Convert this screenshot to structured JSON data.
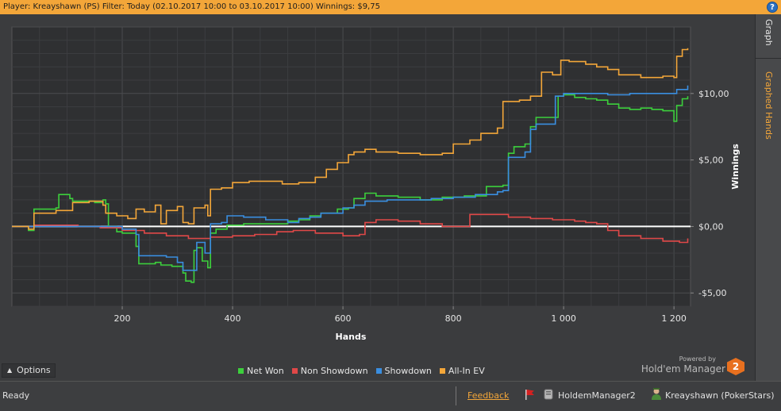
{
  "titlebar": {
    "text": "Player: Kreayshawn (PS) Filter: Today (02.10.2017 10:00 to 03.10.2017 10:00) Winnings: $9,75",
    "help_label": "?"
  },
  "side_tabs": {
    "graph": "Graph",
    "graphed_hands": "Graphed Hands"
  },
  "chart_data": {
    "type": "line",
    "xlabel": "Hands",
    "ylabel": "Winnings",
    "xlim": [
      0,
      1230
    ],
    "ylim": [
      -6,
      15
    ],
    "x_ticks": [
      200,
      400,
      600,
      800,
      1000,
      1200
    ],
    "x_tick_labels": [
      "200",
      "400",
      "600",
      "800",
      "1 000",
      "1 200"
    ],
    "y_ticks": [
      -5,
      0,
      5,
      10
    ],
    "y_tick_labels": [
      "-$5,00",
      "$0,00",
      "$5,00",
      "$10,00"
    ],
    "grid": true,
    "legend_position": "bottom-center",
    "series": [
      {
        "name": "Net Won",
        "color": "#3ccf3c",
        "points": [
          [
            0,
            0
          ],
          [
            30,
            -0.3
          ],
          [
            40,
            1.3
          ],
          [
            80,
            1.4
          ],
          [
            85,
            2.4
          ],
          [
            105,
            2.1
          ],
          [
            110,
            1.9
          ],
          [
            150,
            1.8
          ],
          [
            165,
            2.0
          ],
          [
            170,
            1.7
          ],
          [
            175,
            0
          ],
          [
            190,
            -0.4
          ],
          [
            200,
            -0.5
          ],
          [
            225,
            -1.5
          ],
          [
            230,
            -2.8
          ],
          [
            260,
            -2.7
          ],
          [
            270,
            -2.9
          ],
          [
            290,
            -3.0
          ],
          [
            310,
            -3.5
          ],
          [
            315,
            -4.1
          ],
          [
            325,
            -4.2
          ],
          [
            330,
            -1.8
          ],
          [
            335,
            -1.6
          ],
          [
            345,
            -2.6
          ],
          [
            355,
            -3.1
          ],
          [
            360,
            -0.5
          ],
          [
            370,
            -0.2
          ],
          [
            390,
            0.1
          ],
          [
            420,
            0.2
          ],
          [
            460,
            0.2
          ],
          [
            500,
            0.4
          ],
          [
            520,
            0.5
          ],
          [
            540,
            0.8
          ],
          [
            560,
            1.0
          ],
          [
            590,
            1.3
          ],
          [
            610,
            1.4
          ],
          [
            620,
            2.1
          ],
          [
            640,
            2.5
          ],
          [
            660,
            2.3
          ],
          [
            700,
            2.2
          ],
          [
            740,
            2.0
          ],
          [
            780,
            2.2
          ],
          [
            820,
            2.3
          ],
          [
            860,
            3.0
          ],
          [
            890,
            3.1
          ],
          [
            900,
            5.5
          ],
          [
            910,
            6.0
          ],
          [
            930,
            6.2
          ],
          [
            940,
            7.5
          ],
          [
            950,
            8.2
          ],
          [
            970,
            8.2
          ],
          [
            990,
            9.8
          ],
          [
            1000,
            9.9
          ],
          [
            1020,
            9.7
          ],
          [
            1040,
            9.6
          ],
          [
            1060,
            9.5
          ],
          [
            1080,
            9.2
          ],
          [
            1100,
            8.9
          ],
          [
            1120,
            8.8
          ],
          [
            1140,
            8.9
          ],
          [
            1160,
            8.8
          ],
          [
            1180,
            8.7
          ],
          [
            1200,
            7.9
          ],
          [
            1205,
            9.1
          ],
          [
            1215,
            9.6
          ],
          [
            1225,
            9.8
          ]
        ]
      },
      {
        "name": "Non Showdown",
        "color": "#e04848",
        "points": [
          [
            0,
            0
          ],
          [
            40,
            0.1
          ],
          [
            80,
            0.1
          ],
          [
            120,
            0
          ],
          [
            160,
            -0.1
          ],
          [
            200,
            -0.3
          ],
          [
            240,
            -0.5
          ],
          [
            280,
            -0.7
          ],
          [
            320,
            -0.9
          ],
          [
            360,
            -0.8
          ],
          [
            400,
            -0.7
          ],
          [
            440,
            -0.6
          ],
          [
            480,
            -0.4
          ],
          [
            510,
            -0.3
          ],
          [
            550,
            -0.5
          ],
          [
            600,
            -0.7
          ],
          [
            630,
            -0.6
          ],
          [
            640,
            0.3
          ],
          [
            660,
            0.5
          ],
          [
            700,
            0.4
          ],
          [
            740,
            0.2
          ],
          [
            780,
            0
          ],
          [
            820,
            0
          ],
          [
            830,
            0.9
          ],
          [
            860,
            0.9
          ],
          [
            900,
            0.7
          ],
          [
            940,
            0.6
          ],
          [
            980,
            0.5
          ],
          [
            1020,
            0.4
          ],
          [
            1040,
            0.3
          ],
          [
            1060,
            0.2
          ],
          [
            1080,
            -0.3
          ],
          [
            1100,
            -0.7
          ],
          [
            1140,
            -0.9
          ],
          [
            1180,
            -1.1
          ],
          [
            1210,
            -1.2
          ],
          [
            1225,
            -0.9
          ]
        ]
      },
      {
        "name": "Showdown",
        "color": "#3a8ee0",
        "points": [
          [
            0,
            0
          ],
          [
            80,
            0
          ],
          [
            160,
            0
          ],
          [
            200,
            -0.2
          ],
          [
            225,
            -0.6
          ],
          [
            230,
            -2.2
          ],
          [
            280,
            -2.3
          ],
          [
            300,
            -2.7
          ],
          [
            310,
            -3.3
          ],
          [
            330,
            -3.3
          ],
          [
            335,
            -1.2
          ],
          [
            345,
            -1.2
          ],
          [
            350,
            -2.0
          ],
          [
            360,
            0.2
          ],
          [
            380,
            0.3
          ],
          [
            390,
            0.8
          ],
          [
            420,
            0.7
          ],
          [
            460,
            0.5
          ],
          [
            500,
            0.3
          ],
          [
            520,
            0.6
          ],
          [
            540,
            0.7
          ],
          [
            560,
            1.0
          ],
          [
            600,
            1.4
          ],
          [
            620,
            1.6
          ],
          [
            640,
            1.9
          ],
          [
            680,
            2.0
          ],
          [
            720,
            2.0
          ],
          [
            760,
            2.1
          ],
          [
            800,
            2.2
          ],
          [
            840,
            2.4
          ],
          [
            880,
            2.6
          ],
          [
            890,
            2.7
          ],
          [
            900,
            5.2
          ],
          [
            930,
            5.6
          ],
          [
            940,
            7.3
          ],
          [
            950,
            7.7
          ],
          [
            970,
            7.7
          ],
          [
            985,
            9.8
          ],
          [
            1000,
            10.0
          ],
          [
            1040,
            10.0
          ],
          [
            1080,
            9.9
          ],
          [
            1120,
            10.0
          ],
          [
            1160,
            10.0
          ],
          [
            1200,
            10.0
          ],
          [
            1205,
            10.3
          ],
          [
            1225,
            10.6
          ]
        ]
      },
      {
        "name": "All-In EV",
        "color": "#f3a639",
        "points": [
          [
            0,
            0
          ],
          [
            30,
            -0.2
          ],
          [
            40,
            1.0
          ],
          [
            80,
            1.2
          ],
          [
            110,
            1.8
          ],
          [
            140,
            1.9
          ],
          [
            165,
            1.6
          ],
          [
            170,
            1.0
          ],
          [
            190,
            0.8
          ],
          [
            210,
            0.6
          ],
          [
            225,
            1.3
          ],
          [
            240,
            1.1
          ],
          [
            260,
            1.6
          ],
          [
            270,
            0.2
          ],
          [
            280,
            1.2
          ],
          [
            300,
            1.5
          ],
          [
            310,
            0.3
          ],
          [
            320,
            0.2
          ],
          [
            330,
            1.4
          ],
          [
            350,
            1.6
          ],
          [
            355,
            0.8
          ],
          [
            360,
            2.8
          ],
          [
            380,
            2.9
          ],
          [
            400,
            3.3
          ],
          [
            430,
            3.4
          ],
          [
            460,
            3.4
          ],
          [
            490,
            3.2
          ],
          [
            520,
            3.3
          ],
          [
            550,
            3.7
          ],
          [
            570,
            4.3
          ],
          [
            590,
            4.8
          ],
          [
            610,
            5.4
          ],
          [
            620,
            5.6
          ],
          [
            640,
            5.8
          ],
          [
            660,
            5.6
          ],
          [
            700,
            5.5
          ],
          [
            740,
            5.4
          ],
          [
            780,
            5.5
          ],
          [
            800,
            6.2
          ],
          [
            830,
            6.5
          ],
          [
            850,
            7.0
          ],
          [
            880,
            7.4
          ],
          [
            890,
            9.4
          ],
          [
            920,
            9.5
          ],
          [
            940,
            9.8
          ],
          [
            960,
            11.6
          ],
          [
            980,
            11.4
          ],
          [
            995,
            12.5
          ],
          [
            1010,
            12.4
          ],
          [
            1040,
            12.2
          ],
          [
            1060,
            12.0
          ],
          [
            1080,
            11.8
          ],
          [
            1100,
            11.4
          ],
          [
            1140,
            11.2
          ],
          [
            1180,
            11.3
          ],
          [
            1200,
            11.2
          ],
          [
            1205,
            12.8
          ],
          [
            1215,
            13.3
          ],
          [
            1225,
            13.4
          ]
        ]
      }
    ]
  },
  "options": {
    "label": "Options"
  },
  "powered": {
    "by": "Powered by",
    "name": "Hold'em Manager",
    "logo_text": "2"
  },
  "statusbar": {
    "ready": "Ready",
    "feedback": "Feedback",
    "app_label": "HoldemManager2",
    "player_label": "Kreayshawn (PokerStars)"
  }
}
